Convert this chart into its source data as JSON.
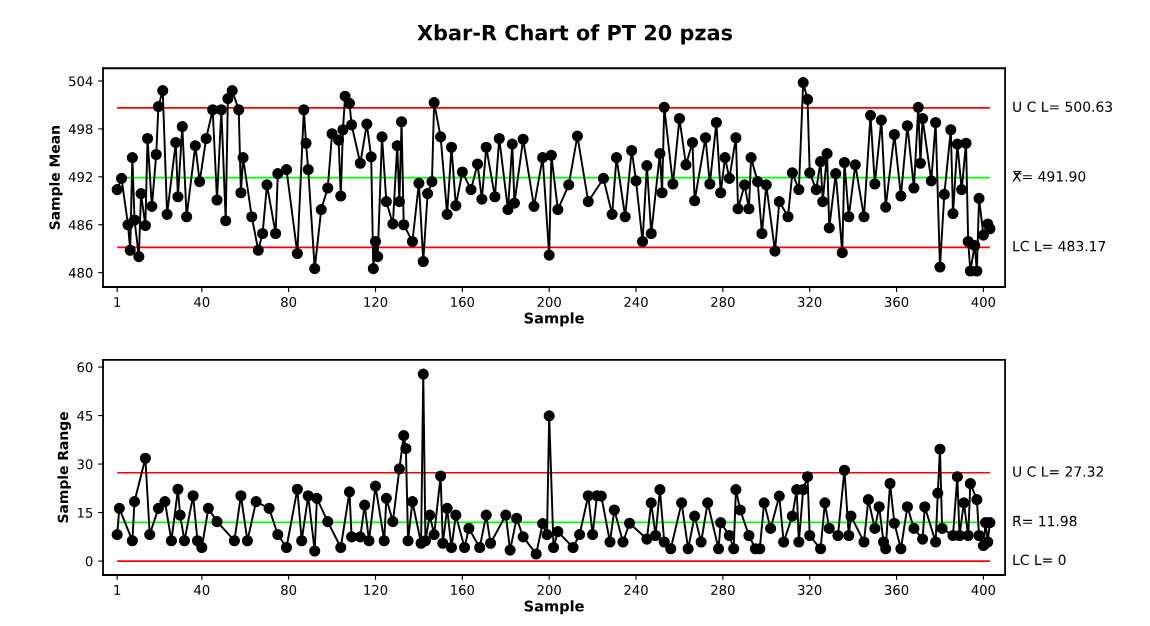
{
  "chart_data": [
    {
      "type": "line",
      "title": "Xbar-R Chart of PT 20 pzas",
      "xlabel": "Sample",
      "ylabel": "Sample Mean",
      "marker": "circle",
      "line_style": "solid",
      "x": [
        1,
        3,
        6,
        7,
        8,
        9,
        11,
        12,
        14,
        15,
        17,
        19,
        20,
        22,
        24,
        28,
        29,
        31,
        33,
        37,
        39,
        42,
        45,
        47,
        49,
        51,
        52,
        54,
        57,
        58,
        59,
        63,
        66,
        68,
        70,
        74,
        75,
        79,
        84,
        87,
        88,
        89,
        92,
        95,
        98,
        100,
        103,
        104,
        105,
        106,
        108,
        109,
        113,
        116,
        118,
        119,
        120,
        121,
        123,
        125,
        128,
        130,
        131,
        132,
        133,
        137,
        140,
        142,
        144,
        146,
        147,
        150,
        153,
        155,
        157,
        160,
        164,
        167,
        169,
        171,
        175,
        177,
        181,
        183,
        184,
        188,
        193,
        197,
        200,
        201,
        204,
        209,
        213,
        218,
        225,
        229,
        231,
        235,
        238,
        240,
        243,
        245,
        247,
        251,
        252,
        253,
        257,
        260,
        263,
        266,
        267,
        272,
        274,
        277,
        279,
        281,
        283,
        286,
        287,
        290,
        292,
        293,
        296,
        298,
        300,
        304,
        306,
        310,
        312,
        315,
        317,
        319,
        320,
        323,
        325,
        326,
        328,
        329,
        332,
        335,
        336,
        338,
        341,
        345,
        348,
        350,
        353,
        355,
        359,
        362,
        365,
        368,
        370,
        371,
        372,
        376,
        378,
        380,
        382,
        385,
        386,
        388,
        390,
        392,
        393,
        394,
        396,
        397,
        398,
        400,
        402,
        403
      ],
      "series": [
        {
          "color": "#000000",
          "values": [
            490.4,
            491.8,
            486,
            482.8,
            494.4,
            486.6,
            482,
            489.9,
            485.9,
            496.8,
            488.3,
            494.8,
            500.8,
            502.8,
            487.3,
            496.3,
            489.5,
            498.3,
            487,
            495.9,
            491.4,
            496.8,
            500.4,
            489.1,
            500.4,
            486.5,
            501.8,
            502.8,
            500.4,
            490,
            494.4,
            487,
            482.8,
            484.9,
            491,
            484.9,
            492.4,
            492.9,
            482.4,
            500.4,
            496.2,
            492.9,
            480.5,
            487.9,
            490.6,
            497.4,
            496.6,
            489.6,
            497.9,
            502.1,
            501.2,
            498.5,
            493.7,
            498.6,
            494.5,
            480.5,
            483.9,
            482,
            497,
            488.9,
            486.1,
            495.9,
            488.9,
            498.9,
            486,
            483.9,
            491.2,
            481.4,
            489.9,
            491.4,
            501.3,
            497,
            487.3,
            495.7,
            488.4,
            492.6,
            490.4,
            493.6,
            489.2,
            495.7,
            489.5,
            496.8,
            487.9,
            496.1,
            488.7,
            496.7,
            488.3,
            494.4,
            482.2,
            494.7,
            487.9,
            491,
            497.1,
            488.9,
            491.8,
            487.3,
            494.4,
            487,
            495.3,
            491.5,
            483.9,
            493.4,
            484.9,
            494.9,
            490,
            500.7,
            491.1,
            499.3,
            493.5,
            496.3,
            489,
            496.9,
            491.1,
            498.8,
            490,
            494.4,
            491.8,
            496.9,
            488,
            491,
            488,
            494.4,
            491.4,
            484.9,
            491,
            482.7,
            488.9,
            487,
            492.5,
            490.4,
            503.8,
            501.7,
            492.5,
            490.4,
            493.9,
            488.9,
            494.9,
            485.6,
            492.4,
            482.5,
            493.8,
            487,
            493.5,
            487,
            499.7,
            491.1,
            499.1,
            488.2,
            497.3,
            489.6,
            498.4,
            490.6,
            500.7,
            493.7,
            499.3,
            491.5,
            498.8,
            480.7,
            489.8,
            497.9,
            487.4,
            496.1,
            490.4,
            496.2,
            483.9,
            480.2,
            483.4,
            480.2,
            489.3,
            484.7,
            486.1,
            485.5
          ]
        }
      ],
      "xlim": [
        -5.5,
        410
      ],
      "ylim": [
        478.2,
        505.6
      ],
      "xticks": [
        1,
        40,
        80,
        120,
        160,
        200,
        240,
        280,
        320,
        360,
        400
      ],
      "yticks": [
        480,
        486,
        492,
        498,
        504
      ],
      "ref_lines": [
        {
          "axis": "y",
          "value": 500.63,
          "label": "U C L= 500.63",
          "color": "#ff0000"
        },
        {
          "axis": "y",
          "value": 491.9,
          "label": "X̿= 491.90",
          "color": "#00ff00"
        },
        {
          "axis": "y",
          "value": 483.17,
          "label": "LC L= 483.17",
          "color": "#ff0000"
        }
      ]
    },
    {
      "type": "line",
      "xlabel": "Sample",
      "ylabel": "Sample Range",
      "marker": "circle",
      "line_style": "solid",
      "x": [
        1,
        2,
        8,
        9,
        14,
        16,
        20,
        23,
        26,
        29,
        30,
        32,
        36,
        38,
        40,
        43,
        47,
        55,
        58,
        61,
        65,
        71,
        75,
        79,
        84,
        86,
        89,
        92,
        93,
        98,
        104,
        108,
        109,
        113,
        115,
        117,
        120,
        124,
        125,
        128,
        131,
        133,
        134,
        135,
        137,
        141,
        142,
        143,
        145,
        147,
        150,
        151,
        153,
        155,
        157,
        161,
        163,
        168,
        171,
        173,
        180,
        182,
        185,
        188,
        194,
        197,
        199,
        200,
        202,
        204,
        211,
        214,
        218,
        220,
        222,
        224,
        228,
        230,
        234,
        237,
        245,
        247,
        249,
        251,
        253,
        256,
        261,
        264,
        267,
        270,
        273,
        278,
        279,
        283,
        285,
        286,
        288,
        292,
        295,
        297,
        299,
        302,
        306,
        308,
        312,
        314,
        315,
        317,
        319,
        320,
        325,
        327,
        329,
        333,
        336,
        338,
        339,
        345,
        347,
        350,
        352,
        354,
        355,
        357,
        359,
        362,
        365,
        368,
        372,
        373,
        378,
        379,
        380,
        381,
        386,
        388,
        389,
        391,
        393,
        394,
        397,
        398,
        400,
        401,
        402,
        403
      ],
      "series": [
        {
          "color": "#000000",
          "values": [
            8.2,
            16.3,
            6.3,
            18.4,
            31.8,
            8.2,
            16.3,
            18.4,
            6.3,
            22.2,
            14.2,
            6.3,
            20.2,
            6.3,
            4.2,
            16.3,
            12.2,
            6.3,
            20.2,
            6.3,
            18.4,
            16.3,
            8.2,
            4.2,
            22.2,
            6.3,
            20.2,
            3.1,
            19.4,
            12.2,
            4.2,
            21.4,
            7.5,
            7.5,
            17.3,
            6.3,
            23.2,
            6.3,
            19.4,
            12.2,
            28.5,
            38.8,
            34.8,
            6.3,
            18.4,
            5.5,
            57.8,
            6.3,
            14.2,
            8.2,
            26.3,
            5.5,
            16.3,
            4.2,
            14.2,
            4.2,
            10.1,
            4.2,
            14.2,
            5.5,
            14.2,
            3.4,
            13.2,
            7.5,
            2.2,
            11.6,
            8.2,
            44.9,
            4.2,
            9.1,
            4.2,
            8.2,
            20.2,
            8.2,
            20.2,
            20.1,
            5.9,
            15.8,
            5.9,
            11.7,
            6.8,
            18,
            7.9,
            22.1,
            5.9,
            3.8,
            18,
            3.8,
            13.9,
            5.9,
            18,
            3.8,
            11.9,
            7.9,
            3.8,
            22.1,
            15.8,
            7.9,
            3.8,
            3.8,
            18,
            10.1,
            20.1,
            5.9,
            13.9,
            22.1,
            5.9,
            22.1,
            26.1,
            7.9,
            3.8,
            18,
            10.1,
            7.9,
            28.1,
            7.9,
            13.9,
            5.9,
            19,
            10.1,
            16.8,
            5.9,
            3.8,
            24,
            11.7,
            3.8,
            16.8,
            10.1,
            6.8,
            16.8,
            5.9,
            21,
            34.6,
            10.1,
            7.9,
            26.1,
            7.9,
            18,
            7.9,
            24,
            19,
            7.9,
            4.8,
            11.9,
            5.9,
            11.9
          ]
        }
      ],
      "xlim": [
        -5.5,
        410
      ],
      "ylim": [
        -4.3,
        62.2
      ],
      "xticks": [
        1,
        40,
        80,
        120,
        160,
        200,
        240,
        280,
        320,
        360,
        400
      ],
      "yticks": [
        0,
        15,
        30,
        45,
        60
      ],
      "ref_lines": [
        {
          "axis": "y",
          "value": 27.32,
          "label": "U C L= 27.32",
          "color": "#ff0000"
        },
        {
          "axis": "y",
          "value": 11.98,
          "label": "R̄= 11.98",
          "color": "#00ff00"
        },
        {
          "axis": "y",
          "value": 0,
          "label": "LC L= 0",
          "color": "#ff0000"
        }
      ]
    }
  ]
}
